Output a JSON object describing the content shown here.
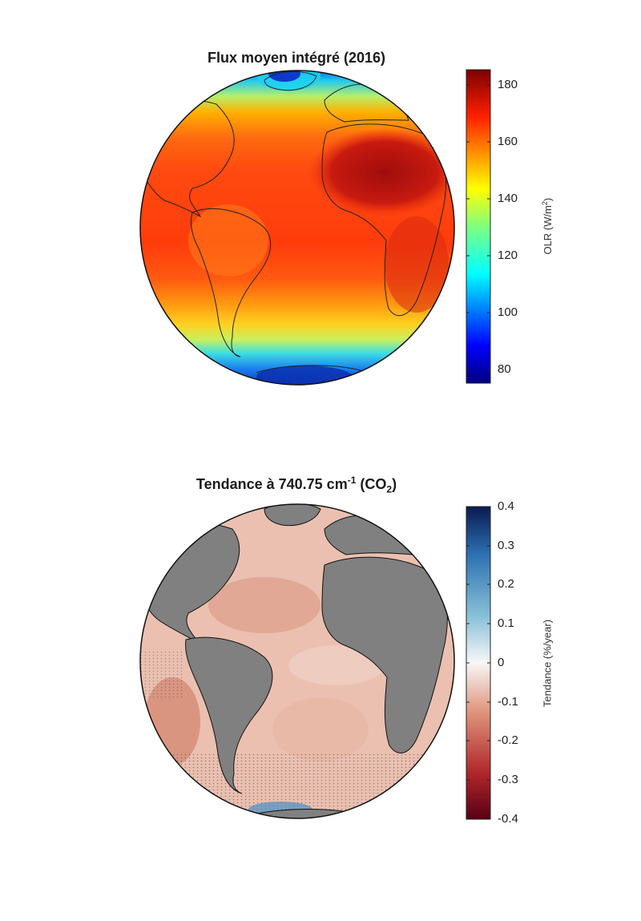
{
  "top": {
    "title": "Flux moyen intégré (2016)",
    "colorbar": {
      "label": "OLR (W/m",
      "label_sup": "2",
      "label_end": ")",
      "ticks": [
        "180",
        "160",
        "140",
        "120",
        "100",
        "80"
      ],
      "range": [
        76,
        185
      ],
      "colormap": "jet"
    }
  },
  "bottom": {
    "title_main": "Tendance à 740.75 cm",
    "title_sup": "-1",
    "title_open": " (CO",
    "title_sub": "2",
    "title_close": ")",
    "colorbar": {
      "label": "Tendance (%/year)",
      "ticks": [
        "0.4",
        "0.3",
        "0.2",
        "0.1",
        "0",
        "-0.1",
        "-0.2",
        "-0.3",
        "-0.4"
      ],
      "range": [
        -0.4,
        0.4
      ],
      "colormap": "diverging red-white-blue"
    },
    "land_color": "#808080"
  }
}
